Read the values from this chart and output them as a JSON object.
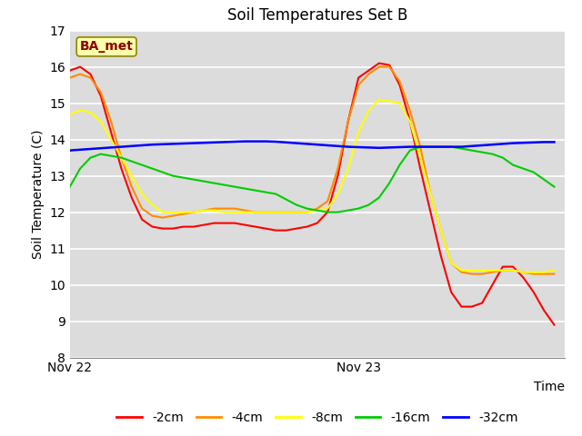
{
  "title": "Soil Temperatures Set B",
  "xlabel": "Time",
  "ylabel": "Soil Temperature (C)",
  "ylim": [
    8.0,
    17.0
  ],
  "yticks": [
    8.0,
    9.0,
    10.0,
    11.0,
    12.0,
    13.0,
    14.0,
    15.0,
    16.0,
    17.0
  ],
  "xlim": [
    0,
    48
  ],
  "xticks": [
    0,
    28
  ],
  "xtick_labels": [
    "Nov 22",
    "Nov 23"
  ],
  "annotation_label": "BA_met",
  "annotation_color": "#8B0000",
  "annotation_bg": "#FFFFAA",
  "bg_color": "#DCDCDC",
  "series": [
    {
      "label": "-2cm",
      "color": "#FF0000",
      "lw": 1.5,
      "x": [
        0,
        1,
        2,
        3,
        4,
        5,
        6,
        7,
        8,
        9,
        10,
        11,
        12,
        13,
        14,
        15,
        16,
        17,
        18,
        19,
        20,
        21,
        22,
        23,
        24,
        25,
        26,
        27,
        28,
        29,
        30,
        31,
        32,
        33,
        34,
        35,
        36,
        37,
        38,
        39,
        40,
        41,
        42,
        43,
        44,
        45,
        46,
        47
      ],
      "y": [
        15.9,
        16.0,
        15.8,
        15.2,
        14.2,
        13.2,
        12.4,
        11.8,
        11.6,
        11.55,
        11.55,
        11.6,
        11.6,
        11.65,
        11.7,
        11.7,
        11.7,
        11.65,
        11.6,
        11.55,
        11.5,
        11.5,
        11.55,
        11.6,
        11.7,
        12.0,
        13.0,
        14.5,
        15.7,
        15.9,
        16.1,
        16.05,
        15.5,
        14.5,
        13.2,
        12.0,
        10.8,
        9.8,
        9.4,
        9.4,
        9.5,
        10.0,
        10.5,
        10.5,
        10.2,
        9.8,
        9.3,
        8.9
      ]
    },
    {
      "label": "-4cm",
      "color": "#FF8C00",
      "lw": 1.5,
      "x": [
        0,
        1,
        2,
        3,
        4,
        5,
        6,
        7,
        8,
        9,
        10,
        11,
        12,
        13,
        14,
        15,
        16,
        17,
        18,
        19,
        20,
        21,
        22,
        23,
        24,
        25,
        26,
        27,
        28,
        29,
        30,
        31,
        32,
        33,
        34,
        35,
        36,
        37,
        38,
        39,
        40,
        41,
        42,
        43,
        44,
        45,
        46,
        47
      ],
      "y": [
        15.7,
        15.8,
        15.7,
        15.3,
        14.5,
        13.5,
        12.7,
        12.1,
        11.9,
        11.85,
        11.9,
        11.95,
        12.0,
        12.05,
        12.1,
        12.1,
        12.1,
        12.05,
        12.0,
        12.0,
        12.0,
        12.0,
        12.0,
        12.0,
        12.1,
        12.3,
        13.2,
        14.5,
        15.5,
        15.8,
        16.0,
        16.0,
        15.6,
        14.8,
        13.8,
        12.5,
        11.5,
        10.6,
        10.35,
        10.3,
        10.3,
        10.35,
        10.4,
        10.4,
        10.35,
        10.3,
        10.3,
        10.3
      ]
    },
    {
      "label": "-8cm",
      "color": "#FFFF00",
      "lw": 1.5,
      "x": [
        0,
        1,
        2,
        3,
        4,
        5,
        6,
        7,
        8,
        9,
        10,
        11,
        12,
        13,
        14,
        15,
        16,
        17,
        18,
        19,
        20,
        21,
        22,
        23,
        24,
        25,
        26,
        27,
        28,
        29,
        30,
        31,
        32,
        33,
        34,
        35,
        36,
        37,
        38,
        39,
        40,
        41,
        42,
        43,
        44,
        45,
        46,
        47
      ],
      "y": [
        14.7,
        14.8,
        14.75,
        14.5,
        14.0,
        13.5,
        13.0,
        12.5,
        12.2,
        12.0,
        12.0,
        12.0,
        12.0,
        12.05,
        12.05,
        12.0,
        12.0,
        12.0,
        12.0,
        12.0,
        12.0,
        12.0,
        12.0,
        12.0,
        12.05,
        12.1,
        12.5,
        13.2,
        14.2,
        14.8,
        15.1,
        15.05,
        15.0,
        14.5,
        13.5,
        12.5,
        11.5,
        10.6,
        10.4,
        10.4,
        10.4,
        10.4,
        10.4,
        10.4,
        10.35,
        10.35,
        10.35,
        10.4
      ]
    },
    {
      "label": "-16cm",
      "color": "#00CC00",
      "lw": 1.5,
      "x": [
        0,
        1,
        2,
        3,
        4,
        5,
        6,
        7,
        8,
        9,
        10,
        11,
        12,
        13,
        14,
        15,
        16,
        17,
        18,
        19,
        20,
        21,
        22,
        23,
        24,
        25,
        26,
        27,
        28,
        29,
        30,
        31,
        32,
        33,
        34,
        35,
        36,
        37,
        38,
        39,
        40,
        41,
        42,
        43,
        44,
        45,
        46,
        47
      ],
      "y": [
        12.7,
        13.2,
        13.5,
        13.6,
        13.55,
        13.5,
        13.4,
        13.3,
        13.2,
        13.1,
        13.0,
        12.95,
        12.9,
        12.85,
        12.8,
        12.75,
        12.7,
        12.65,
        12.6,
        12.55,
        12.5,
        12.35,
        12.2,
        12.1,
        12.05,
        12.0,
        12.0,
        12.05,
        12.1,
        12.2,
        12.4,
        12.8,
        13.3,
        13.7,
        13.8,
        13.8,
        13.8,
        13.8,
        13.75,
        13.7,
        13.65,
        13.6,
        13.5,
        13.3,
        13.2,
        13.1,
        12.9,
        12.7
      ]
    },
    {
      "label": "-32cm",
      "color": "#0000FF",
      "lw": 1.8,
      "x": [
        0,
        1,
        2,
        3,
        4,
        5,
        6,
        7,
        8,
        9,
        10,
        11,
        12,
        13,
        14,
        15,
        16,
        17,
        18,
        19,
        20,
        21,
        22,
        23,
        24,
        25,
        26,
        27,
        28,
        29,
        30,
        31,
        32,
        33,
        34,
        35,
        36,
        37,
        38,
        39,
        40,
        41,
        42,
        43,
        44,
        45,
        46,
        47
      ],
      "y": [
        13.7,
        13.72,
        13.74,
        13.76,
        13.78,
        13.8,
        13.82,
        13.84,
        13.86,
        13.87,
        13.88,
        13.89,
        13.9,
        13.91,
        13.92,
        13.93,
        13.94,
        13.95,
        13.95,
        13.95,
        13.94,
        13.92,
        13.9,
        13.88,
        13.86,
        13.84,
        13.82,
        13.8,
        13.79,
        13.78,
        13.77,
        13.78,
        13.79,
        13.8,
        13.8,
        13.8,
        13.8,
        13.8,
        13.8,
        13.82,
        13.84,
        13.86,
        13.88,
        13.9,
        13.91,
        13.92,
        13.93,
        13.93
      ]
    }
  ]
}
